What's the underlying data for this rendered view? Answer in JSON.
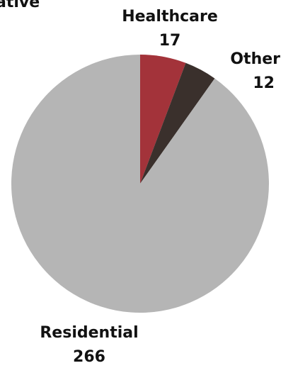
{
  "chart_data": {
    "type": "pie",
    "title_fragment": "ative",
    "slices": [
      {
        "name": "Healthcare",
        "value": 17,
        "color": "#a3333a"
      },
      {
        "name": "Other",
        "value": 12,
        "color": "#3a302c"
      },
      {
        "name": "Residential",
        "value": 266,
        "color": "#b5b5b5"
      }
    ]
  }
}
